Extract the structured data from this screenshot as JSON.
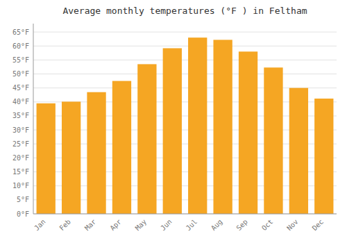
{
  "chart_data": {
    "type": "bar",
    "title": "Average monthly temperatures (°F ) in Feltham",
    "categories": [
      "Jan",
      "Feb",
      "Mar",
      "Apr",
      "May",
      "Jun",
      "Jul",
      "Aug",
      "Sep",
      "Oct",
      "Nov",
      "Dec"
    ],
    "values": [
      39.5,
      40.1,
      43.5,
      47.5,
      53.5,
      59.2,
      63.0,
      62.2,
      58.0,
      52.3,
      45.0,
      41.2
    ],
    "color": "#F5A623",
    "ylim": [
      0,
      68
    ],
    "yticks": [
      {
        "value": 0,
        "label": "0°F"
      },
      {
        "value": 5,
        "label": "5°F"
      },
      {
        "value": 10,
        "label": "10°F"
      },
      {
        "value": 15,
        "label": "15°F"
      },
      {
        "value": 20,
        "label": "20°F"
      },
      {
        "value": 25,
        "label": "25°F"
      },
      {
        "value": 30,
        "label": "30°F"
      },
      {
        "value": 35,
        "label": "35°F"
      },
      {
        "value": 40,
        "label": "40°F"
      },
      {
        "value": 45,
        "label": "45°F"
      },
      {
        "value": 50,
        "label": "50°F"
      },
      {
        "value": 55,
        "label": "55°F"
      },
      {
        "value": 60,
        "label": "60°F"
      },
      {
        "value": 65,
        "label": "65°F"
      }
    ],
    "grid": true
  }
}
